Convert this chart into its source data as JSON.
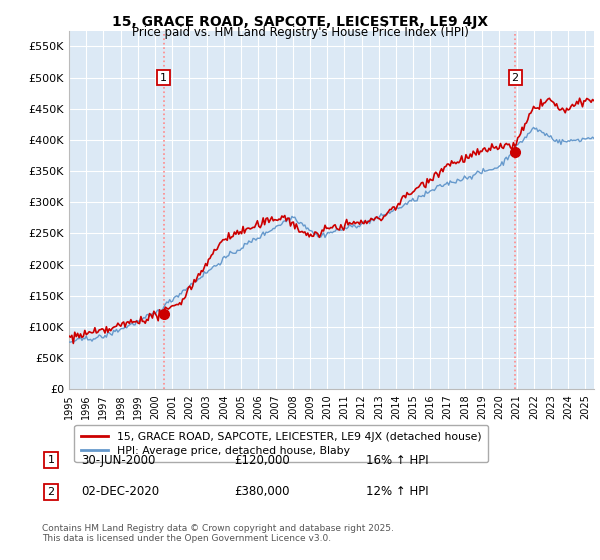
{
  "title": "15, GRACE ROAD, SAPCOTE, LEICESTER, LE9 4JX",
  "subtitle": "Price paid vs. HM Land Registry's House Price Index (HPI)",
  "ylim": [
    0,
    575000
  ],
  "yticks": [
    0,
    50000,
    100000,
    150000,
    200000,
    250000,
    300000,
    350000,
    400000,
    450000,
    500000,
    550000
  ],
  "ytick_labels": [
    "£0",
    "£50K",
    "£100K",
    "£150K",
    "£200K",
    "£250K",
    "£300K",
    "£350K",
    "£400K",
    "£450K",
    "£500K",
    "£550K"
  ],
  "hpi_color": "#6699cc",
  "price_color": "#cc0000",
  "sale1_date": 2000.5,
  "sale1_price": 120000,
  "sale2_date": 2020.92,
  "sale2_price": 380000,
  "vline_color": "#ff8888",
  "legend_line1": "15, GRACE ROAD, SAPCOTE, LEICESTER, LE9 4JX (detached house)",
  "legend_line2": "HPI: Average price, detached house, Blaby",
  "annotation1_date": "30-JUN-2000",
  "annotation1_price": "£120,000",
  "annotation1_hpi": "16% ↑ HPI",
  "annotation2_date": "02-DEC-2020",
  "annotation2_price": "£380,000",
  "annotation2_hpi": "12% ↑ HPI",
  "footer": "Contains HM Land Registry data © Crown copyright and database right 2025.\nThis data is licensed under the Open Government Licence v3.0.",
  "plot_bg_color": "#dce9f5",
  "grid_color": "#ffffff"
}
